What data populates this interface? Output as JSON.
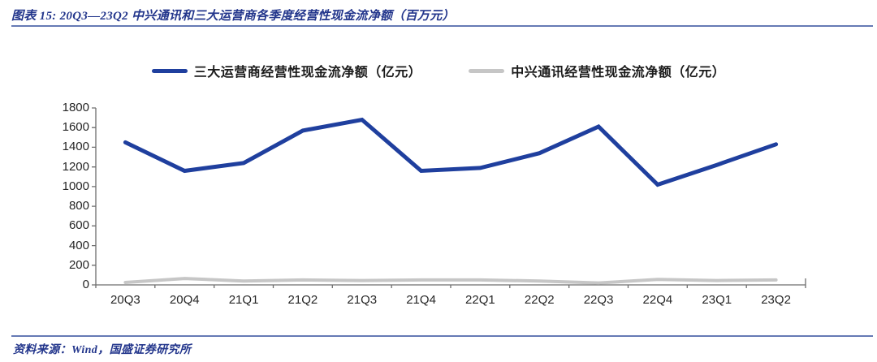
{
  "header": {
    "title": "图表 15:  20Q3—23Q2 中兴通讯和三大运营商各季度经营性现金流净额（百万元）"
  },
  "footer": {
    "source": "资料来源：Wind，国盛证券研究所"
  },
  "colors": {
    "title_blue": "#23368C",
    "rule_blue": "#41599f",
    "operators_line": "#1F3F9E",
    "zte_line": "#C6C6C6",
    "axis": "#6e6e6e",
    "tick_text": "#262626"
  },
  "chart_data": {
    "type": "line",
    "title": "20Q3—23Q2 中兴通讯和三大运营商各季度经营性现金流净额（百万元）",
    "categories": [
      "20Q3",
      "20Q4",
      "21Q1",
      "21Q2",
      "21Q3",
      "21Q4",
      "22Q1",
      "22Q2",
      "22Q3",
      "22Q4",
      "23Q1",
      "23Q2"
    ],
    "series": [
      {
        "name": "三大运营商经营性现金流净额（亿元）",
        "color": "#1F3F9E",
        "stroke_width": 5,
        "values": [
          1450,
          1160,
          1240,
          1570,
          1680,
          1160,
          1190,
          1340,
          1610,
          1020,
          1220,
          1430
        ]
      },
      {
        "name": "中兴通讯经营性现金流净额（亿元）",
        "color": "#C6C6C6",
        "stroke_width": 4,
        "values": [
          25,
          65,
          40,
          50,
          45,
          50,
          50,
          40,
          20,
          55,
          45,
          50
        ]
      }
    ],
    "xlabel": "",
    "ylabel": "",
    "ylim": [
      0,
      1800
    ],
    "ytick_step": 200,
    "grid": false,
    "legend_position": "top"
  }
}
